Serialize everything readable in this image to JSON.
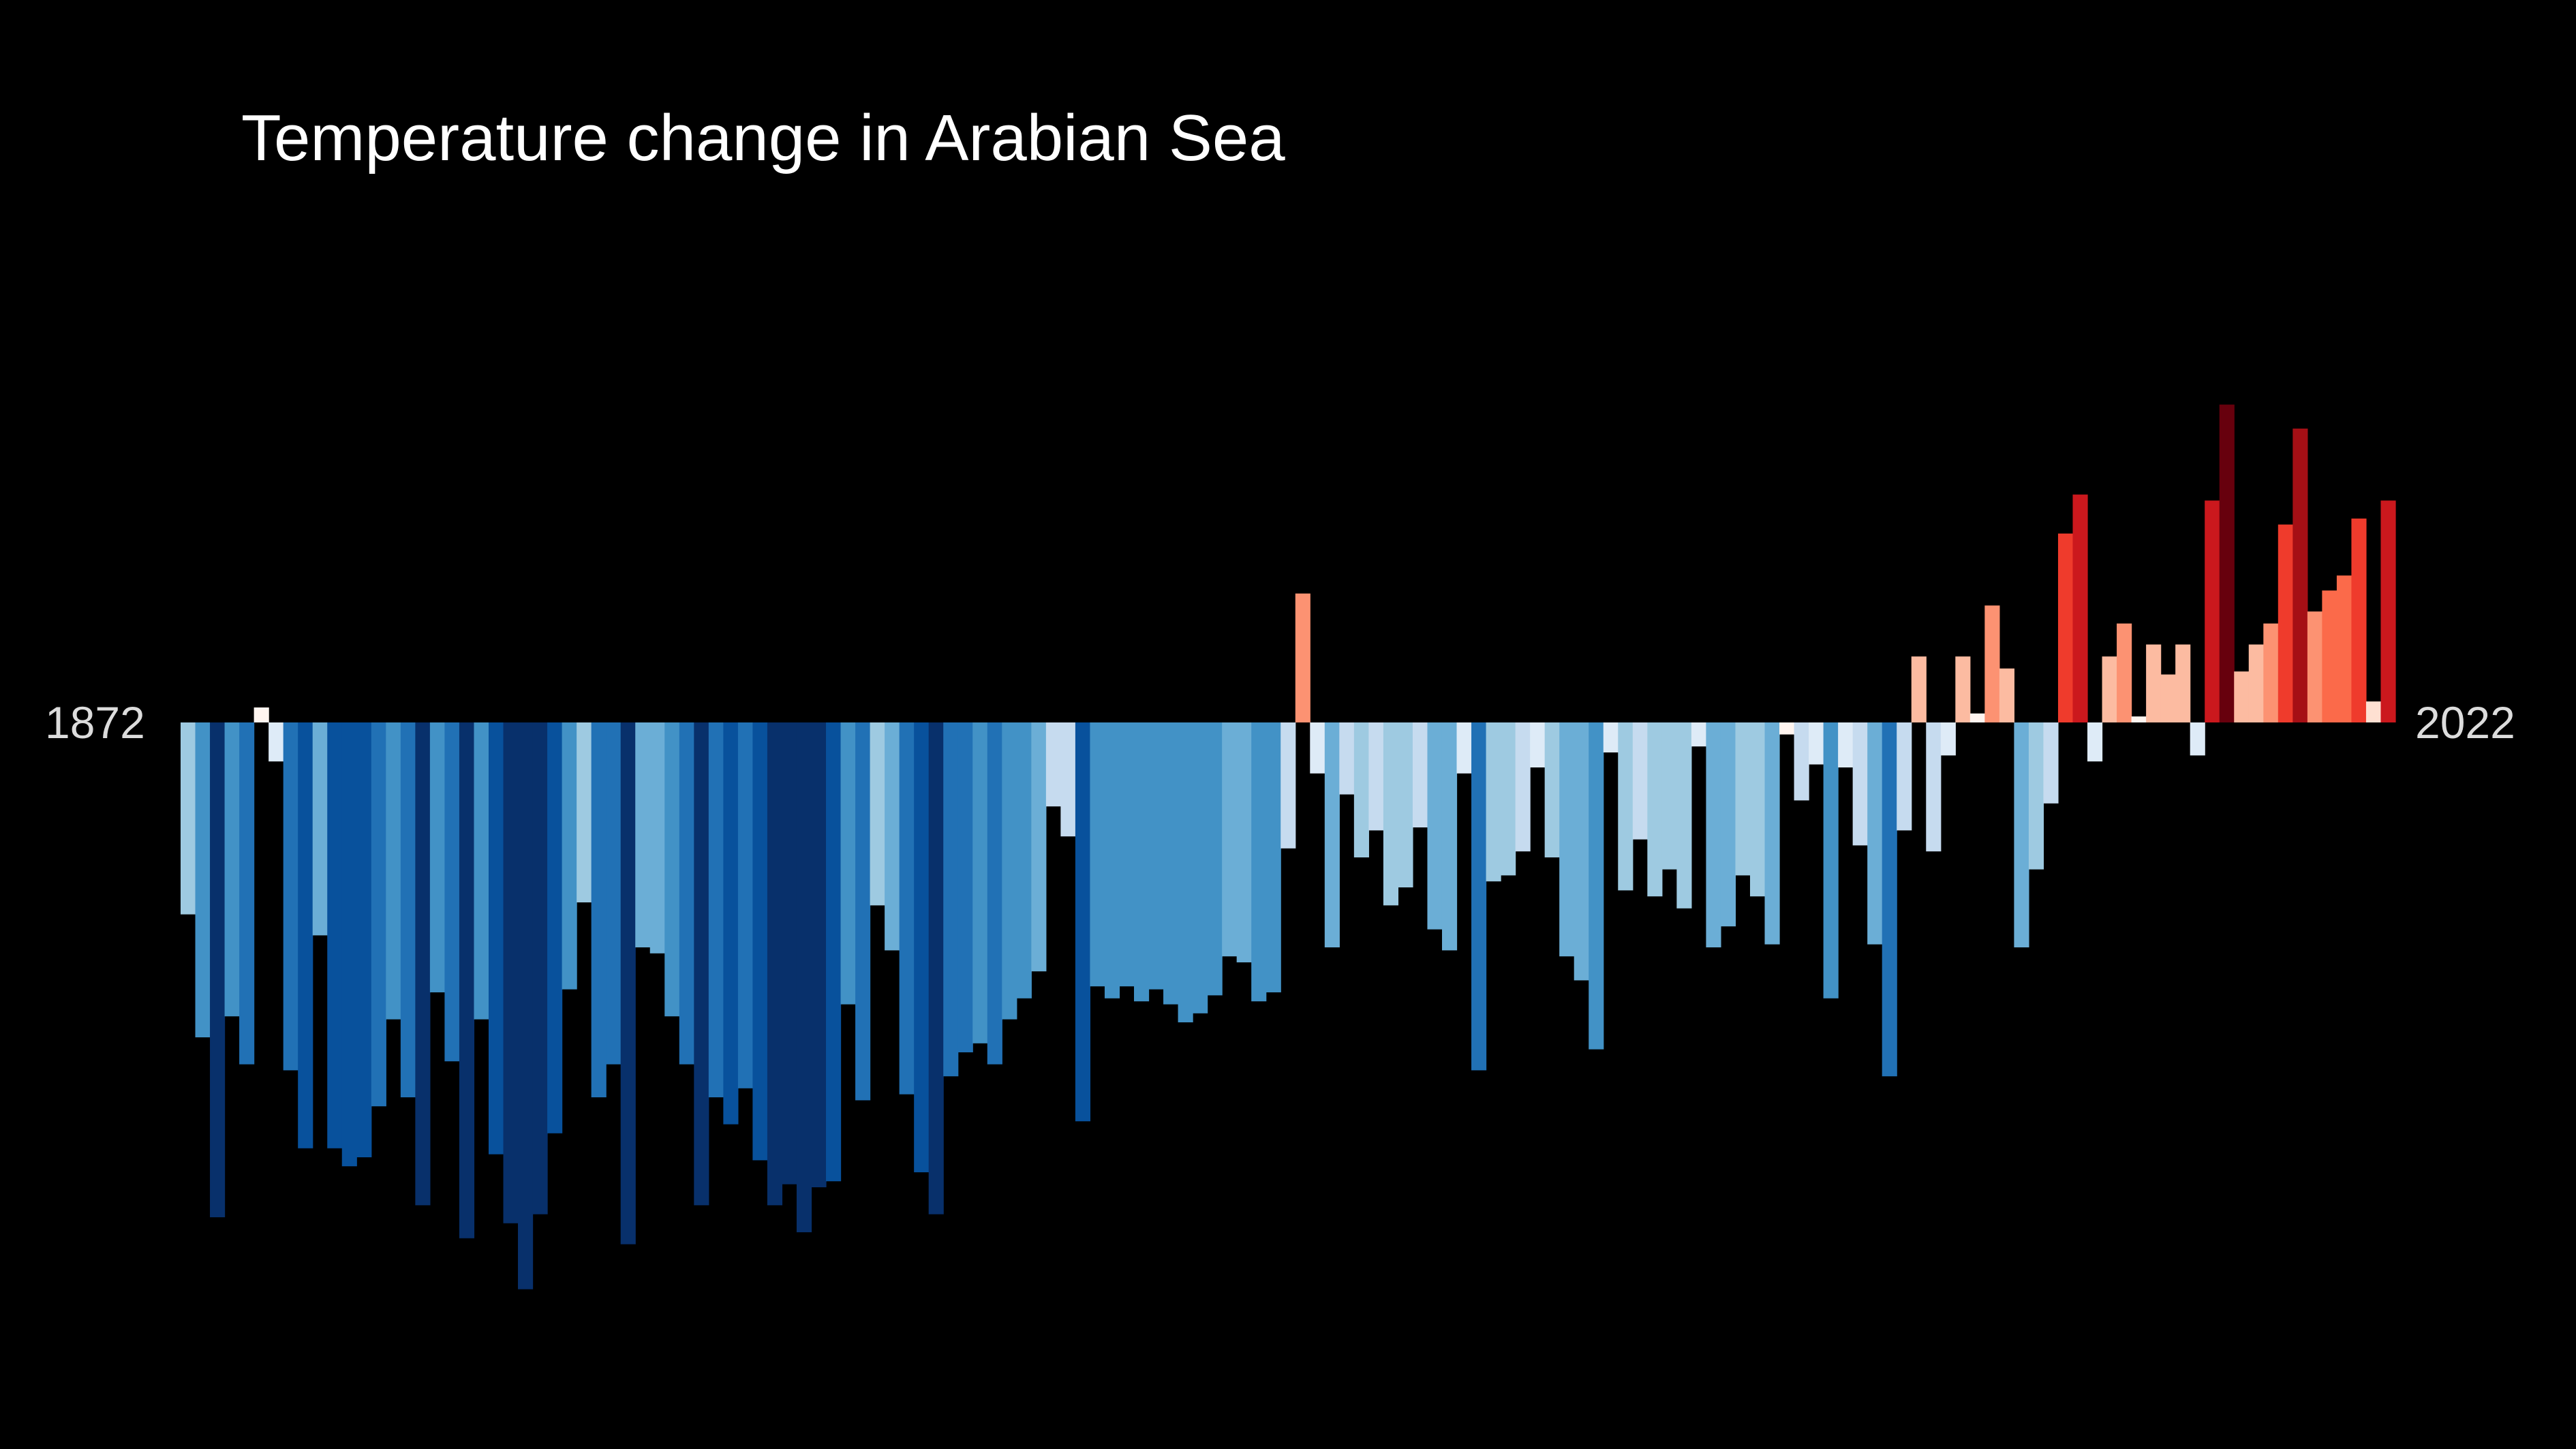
{
  "chart_data": {
    "type": "bar",
    "title": "Temperature change in Arabian Sea",
    "xlabel": "",
    "ylabel": "",
    "start_label": "1872",
    "end_label": "2022",
    "x_start": 1872,
    "x_end": 2022,
    "ylim": [
      -1.9,
      1.5
    ],
    "grid": false,
    "legend": "none",
    "colors": {
      "background": "#000000",
      "title": "#ffffff",
      "labels": "#dcdcdc"
    },
    "values": [
      -0.64,
      -1.05,
      -1.65,
      -0.98,
      -1.14,
      0.05,
      -0.13,
      -1.16,
      -1.42,
      -0.71,
      -1.42,
      -1.48,
      -1.45,
      -1.28,
      -0.99,
      -1.25,
      -1.61,
      -0.9,
      -1.13,
      -1.72,
      -0.99,
      -1.44,
      -1.67,
      -1.89,
      -1.64,
      -1.37,
      -0.89,
      -0.6,
      -1.25,
      -1.14,
      -1.74,
      -0.75,
      -0.77,
      -0.98,
      -1.14,
      -1.61,
      -1.25,
      -1.34,
      -1.22,
      -1.46,
      -1.61,
      -1.54,
      -1.7,
      -1.55,
      -1.53,
      -0.94,
      -1.26,
      -0.61,
      -0.76,
      -1.24,
      -1.5,
      -1.64,
      -1.18,
      -1.1,
      -1.07,
      -1.14,
      -0.99,
      -0.92,
      -0.83,
      -0.28,
      -0.38,
      -1.33,
      -0.88,
      -0.92,
      -0.88,
      -0.93,
      -0.89,
      -0.94,
      -1.0,
      -0.97,
      -0.91,
      -0.78,
      -0.8,
      -0.93,
      -0.9,
      -0.42,
      0.43,
      -0.17,
      -0.75,
      -0.24,
      -0.45,
      -0.36,
      -0.61,
      -0.55,
      -0.35,
      -0.69,
      -0.76,
      -0.17,
      -1.16,
      -0.53,
      -0.51,
      -0.43,
      -0.15,
      -0.45,
      -0.78,
      -0.86,
      -1.09,
      -0.1,
      -0.56,
      -0.39,
      -0.58,
      -0.49,
      -0.62,
      -0.08,
      -0.75,
      -0.68,
      -0.51,
      -0.58,
      -0.74,
      -0.04,
      -0.26,
      -0.14,
      -0.92,
      -0.15,
      -0.41,
      -0.74,
      -1.18,
      -0.36,
      0.22,
      -0.43,
      -0.11,
      0.22,
      0.03,
      0.39,
      0.18,
      -0.75,
      -0.49,
      -0.27,
      0.63,
      0.76,
      -0.13,
      0.22,
      0.33,
      0.02,
      0.26,
      0.16,
      0.26,
      -0.11,
      0.74,
      1.06,
      0.17,
      0.26,
      0.33,
      0.66,
      0.98,
      0.37,
      0.44,
      0.49,
      0.68,
      0.07,
      0.74
    ]
  }
}
